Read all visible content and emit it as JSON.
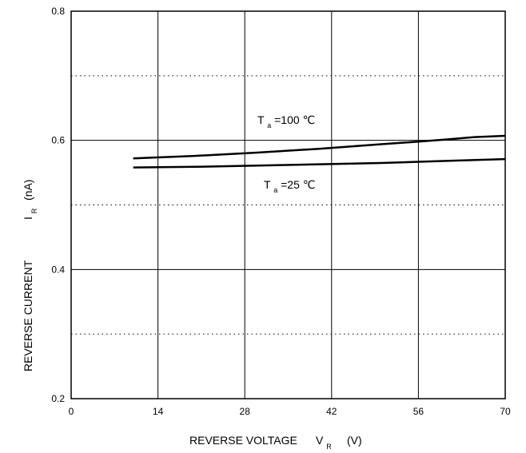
{
  "chart_data": {
    "type": "line",
    "xlabel": "REVERSE VOLTAGE",
    "xlabel_symbol": "V",
    "xlabel_symbol_sub": "R",
    "xlabel_unit": "(V)",
    "ylabel": "REVERSE CURRENT",
    "ylabel_symbol": "I",
    "ylabel_symbol_sub": "R",
    "ylabel_unit": "(nA)",
    "xlim": [
      0,
      70
    ],
    "ylim": [
      0.2,
      0.8
    ],
    "x_ticks": [
      0,
      14,
      28,
      42,
      56,
      70
    ],
    "x_tick_labels": [
      "0",
      "14",
      "28",
      "42",
      "56",
      "70"
    ],
    "y_ticks": [
      0.2,
      0.4,
      0.6,
      0.8
    ],
    "y_tick_labels": [
      "0.2",
      "0.4",
      "0.6",
      "0.8"
    ],
    "y_minor_dotted": [
      0.3,
      0.5,
      0.7
    ],
    "grid": true,
    "series": [
      {
        "name": "100",
        "x": [
          10,
          20,
          30,
          40,
          50,
          56,
          60,
          65,
          70
        ],
        "y": [
          0.572,
          0.576,
          0.581,
          0.587,
          0.594,
          0.598,
          0.601,
          0.605,
          0.607
        ]
      },
      {
        "name": "25",
        "x": [
          10,
          20,
          30,
          40,
          50,
          60,
          70
        ],
        "y": [
          0.558,
          0.559,
          0.561,
          0.563,
          0.565,
          0.568,
          0.571
        ]
      }
    ],
    "annotations": [
      {
        "series_index": 0,
        "symbol": "T",
        "sub": "a",
        "text": "=100 ℃"
      },
      {
        "series_index": 1,
        "symbol": "T",
        "sub": "a",
        "text": "=25 ℃"
      }
    ]
  }
}
